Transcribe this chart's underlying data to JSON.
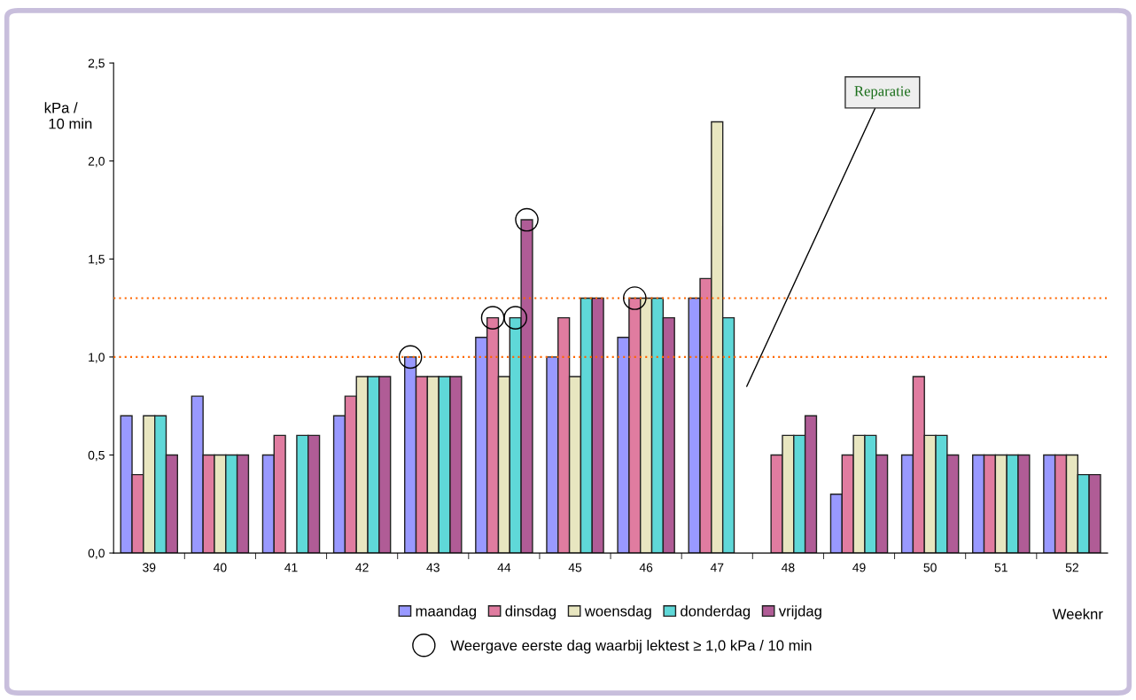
{
  "chart_data": {
    "type": "bar",
    "categories": [
      "39",
      "40",
      "41",
      "42",
      "43",
      "44",
      "45",
      "46",
      "47",
      "48",
      "49",
      "50",
      "51",
      "52"
    ],
    "xlabel": "Weeknr",
    "ylabel": "kPa /\n 10 min",
    "ylim": [
      0,
      2.5
    ],
    "yticks": [
      {
        "value": 0,
        "label": "0,0"
      },
      {
        "value": 0.5,
        "label": "0,5"
      },
      {
        "value": 1.0,
        "label": "1,0"
      },
      {
        "value": 1.5,
        "label": "1,5"
      },
      {
        "value": 2.0,
        "label": "2,0"
      },
      {
        "value": 2.5,
        "label": "2,5"
      }
    ],
    "series": [
      {
        "name": "maandag",
        "color": "#9999ff",
        "values": [
          0.7,
          0.8,
          0.5,
          0.7,
          1.0,
          1.1,
          1.0,
          1.1,
          1.3,
          null,
          0.3,
          0.5,
          0.5,
          0.5
        ]
      },
      {
        "name": "dinsdag",
        "color": "#e07ca0",
        "values": [
          0.4,
          0.5,
          0.6,
          0.8,
          0.9,
          1.2,
          1.2,
          1.3,
          1.4,
          0.5,
          0.5,
          0.9,
          0.5,
          0.5
        ]
      },
      {
        "name": "woensdag",
        "color": "#e8e6c0",
        "values": [
          0.7,
          0.5,
          null,
          0.9,
          0.9,
          0.9,
          0.9,
          1.3,
          2.2,
          0.6,
          0.6,
          0.6,
          0.5,
          0.5
        ]
      },
      {
        "name": "donderdag",
        "color": "#5fd8d8",
        "values": [
          0.7,
          0.5,
          0.6,
          0.9,
          0.9,
          1.2,
          1.3,
          1.3,
          1.2,
          0.6,
          0.6,
          0.6,
          0.5,
          0.4
        ]
      },
      {
        "name": "vrijdag",
        "color": "#b05c96",
        "values": [
          0.5,
          0.5,
          0.6,
          0.9,
          0.9,
          1.7,
          1.3,
          1.2,
          null,
          0.7,
          0.5,
          0.5,
          0.5,
          0.4
        ]
      },
      {
        "name": "Weergave eerste dag waarbij lektest ≥ 1,0 kPa / 10 min",
        "type": "scatter",
        "color": "#000000",
        "x": [
          "43",
          "44",
          "44",
          "44",
          "46"
        ],
        "values": [
          1.0,
          1.2,
          1.2,
          1.7,
          1.3
        ]
      }
    ],
    "ref_lines": [
      {
        "axis": "y",
        "value": 1.0,
        "color": "#ff6600",
        "line_style": "dotted"
      },
      {
        "axis": "y",
        "value": 1.3,
        "color": "#ff6600",
        "line_style": "dotted"
      }
    ],
    "annotations": [
      "Reparatie"
    ],
    "legend": "bottom",
    "grid": false,
    "marker": "circle"
  }
}
